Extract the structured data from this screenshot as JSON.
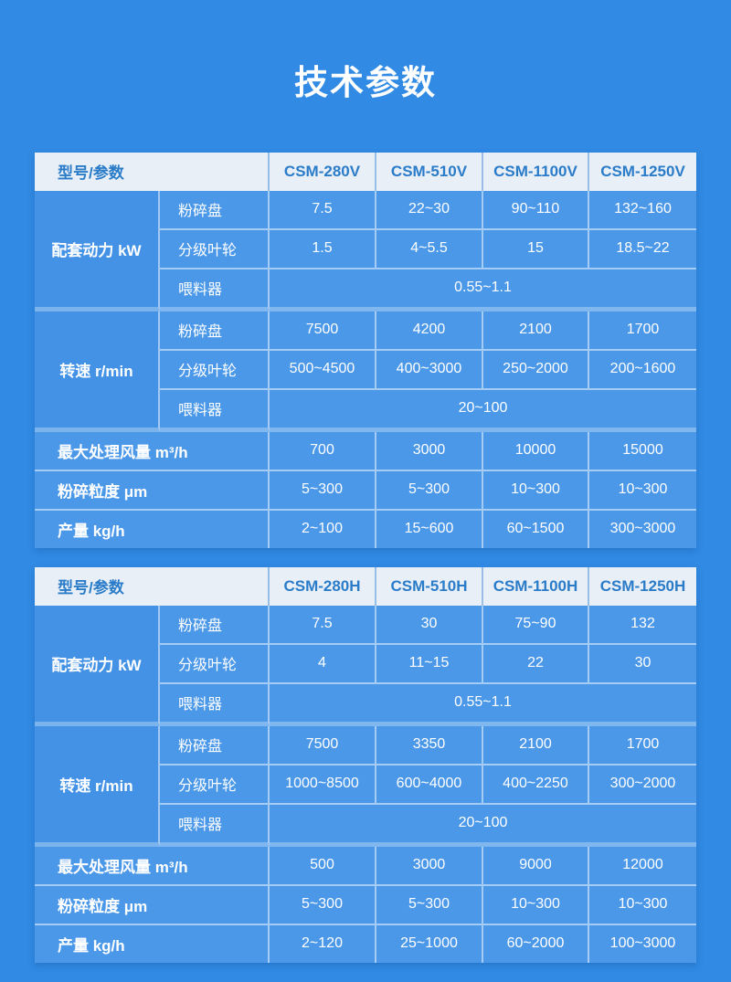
{
  "page": {
    "title": "技术参数"
  },
  "colors": {
    "background": "#318AE3",
    "cell": "#4B98E9",
    "group_cell": "#4392E6",
    "header_bg": "#E9EFF7",
    "header_text": "#2A7CC9",
    "body_text": "#FFFFFF"
  },
  "chart_data": [
    {
      "type": "table",
      "corner_label": "型号/参数",
      "models": [
        "CSM-280V",
        "CSM-510V",
        "CSM-1100V",
        "CSM-1250V"
      ],
      "groups": [
        {
          "label": "配套动力 kW",
          "rows": [
            {
              "sub": "粉碎盘",
              "values": [
                "7.5",
                "22~30",
                "90~110",
                "132~160"
              ]
            },
            {
              "sub": "分级叶轮",
              "values": [
                "1.5",
                "4~5.5",
                "15",
                "18.5~22"
              ]
            },
            {
              "sub": "喂料器",
              "span_value": "0.55~1.1"
            }
          ]
        },
        {
          "label": "转速 r/min",
          "rows": [
            {
              "sub": "粉碎盘",
              "values": [
                "7500",
                "4200",
                "2100",
                "1700"
              ]
            },
            {
              "sub": "分级叶轮",
              "values": [
                "500~4500",
                "400~3000",
                "250~2000",
                "200~1600"
              ]
            },
            {
              "sub": "喂料器",
              "span_value": "20~100"
            }
          ]
        }
      ],
      "simple_rows": [
        {
          "label": "最大处理风量 m³/h",
          "values": [
            "700",
            "3000",
            "10000",
            "15000"
          ]
        },
        {
          "label": "粉碎粒度 μm",
          "values": [
            "5~300",
            "5~300",
            "10~300",
            "10~300"
          ]
        },
        {
          "label": "产量 kg/h",
          "values": [
            "2~100",
            "15~600",
            "60~1500",
            "300~3000"
          ]
        }
      ]
    },
    {
      "type": "table",
      "corner_label": "型号/参数",
      "models": [
        "CSM-280H",
        "CSM-510H",
        "CSM-1100H",
        "CSM-1250H"
      ],
      "groups": [
        {
          "label": "配套动力 kW",
          "rows": [
            {
              "sub": "粉碎盘",
              "values": [
                "7.5",
                "30",
                "75~90",
                "132"
              ]
            },
            {
              "sub": "分级叶轮",
              "values": [
                "4",
                "11~15",
                "22",
                "30"
              ]
            },
            {
              "sub": "喂料器",
              "span_value": "0.55~1.1"
            }
          ]
        },
        {
          "label": "转速 r/min",
          "rows": [
            {
              "sub": "粉碎盘",
              "values": [
                "7500",
                "3350",
                "2100",
                "1700"
              ]
            },
            {
              "sub": "分级叶轮",
              "values": [
                "1000~8500",
                "600~4000",
                "400~2250",
                "300~2000"
              ]
            },
            {
              "sub": "喂料器",
              "span_value": "20~100"
            }
          ]
        }
      ],
      "simple_rows": [
        {
          "label": "最大处理风量 m³/h",
          "values": [
            "500",
            "3000",
            "9000",
            "12000"
          ]
        },
        {
          "label": "粉碎粒度 μm",
          "values": [
            "5~300",
            "5~300",
            "10~300",
            "10~300"
          ]
        },
        {
          "label": "产量 kg/h",
          "values": [
            "2~120",
            "25~1000",
            "60~2000",
            "100~3000"
          ]
        }
      ]
    }
  ]
}
